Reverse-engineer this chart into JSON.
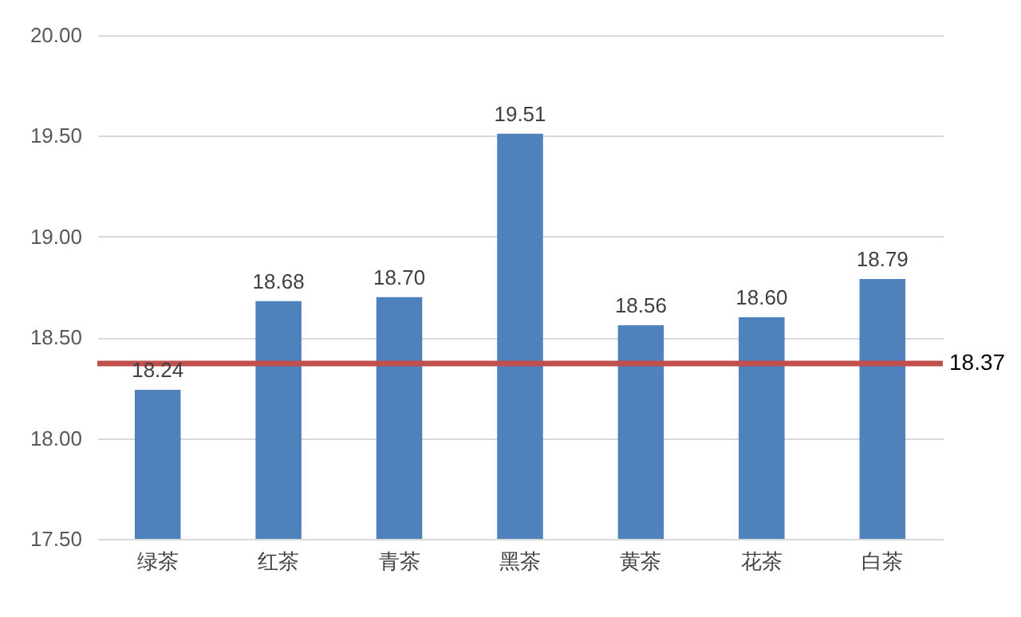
{
  "chart_data": {
    "type": "bar",
    "categories": [
      "绿茶",
      "红茶",
      "青茶",
      "黑茶",
      "黄茶",
      "花茶",
      "白茶"
    ],
    "values": [
      18.24,
      18.68,
      18.7,
      19.51,
      18.56,
      18.6,
      18.79
    ],
    "value_labels": [
      "18.24",
      "18.68",
      "18.70",
      "19.51",
      "18.56",
      "18.60",
      "18.79"
    ],
    "color": "#4f81bd",
    "ylim": [
      17.5,
      20
    ],
    "yticks": [
      {
        "value": 17.5,
        "label": "17.50"
      },
      {
        "value": 18,
        "label": "18.00"
      },
      {
        "value": 18.5,
        "label": "18.50"
      },
      {
        "value": 19,
        "label": "19.00"
      },
      {
        "value": 19.5,
        "label": "19.50"
      },
      {
        "value": 20,
        "label": "20.00"
      }
    ],
    "grid": "y",
    "ref_lines": [
      {
        "axis": "y",
        "value": 18.37,
        "label": "18.37",
        "color": "#c0504d"
      }
    ]
  }
}
